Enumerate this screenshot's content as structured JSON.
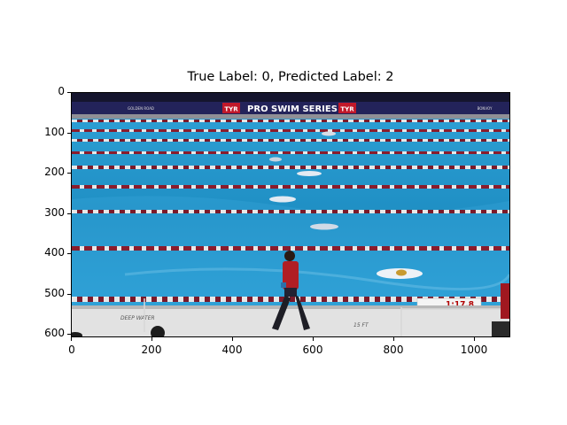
{
  "figure": {
    "title": "True Label: 0, Predicted Label: 2",
    "x_ticks": [
      "0",
      "200",
      "400",
      "600",
      "800",
      "1000"
    ],
    "y_ticks": [
      "0",
      "100",
      "200",
      "300",
      "400",
      "500",
      "600"
    ]
  },
  "scene": {
    "banner_text": "PRO SWIM SERIES",
    "banner_brand": "TYR",
    "sponsor_left": "GOLDEN ROAD",
    "sponsor_right": "BONVOY",
    "race_clock": "1:17.8",
    "deck_text_left": "DEEP WATER",
    "deck_text_right": "15 FT",
    "colors": {
      "pool_water": "#1f8fc4",
      "banner": "#23235a",
      "lane_rope_red": "#8a1c2c",
      "lane_rope_white": "#e8e8e8",
      "clock_text": "#b00000"
    }
  }
}
